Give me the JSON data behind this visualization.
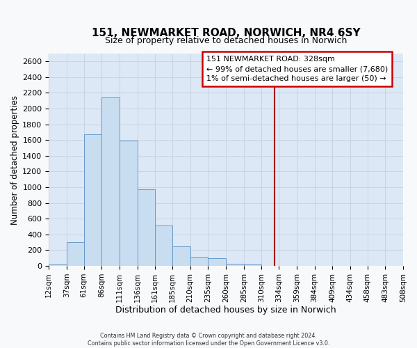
{
  "title": "151, NEWMARKET ROAD, NORWICH, NR4 6SY",
  "subtitle": "Size of property relative to detached houses in Norwich",
  "xlabel": "Distribution of detached houses by size in Norwich",
  "ylabel": "Number of detached properties",
  "bar_color": "#c8ddf0",
  "bar_edge_color": "#6699cc",
  "bg_color": "#dce8f5",
  "grid_color": "#c0ccd8",
  "fig_bg_color": "#f8f9fa",
  "bin_edges": [
    12,
    37,
    61,
    86,
    111,
    136,
    161,
    185,
    210,
    235,
    260,
    285,
    310,
    334,
    359,
    384,
    409,
    434,
    458,
    483,
    508
  ],
  "bin_heights": [
    20,
    300,
    1670,
    2140,
    1590,
    970,
    510,
    250,
    120,
    100,
    30,
    20,
    5,
    5,
    5,
    5,
    5,
    5,
    5,
    5
  ],
  "property_size": 328,
  "vline_color": "#aa0000",
  "annotation_title": "151 NEWMARKET ROAD: 328sqm",
  "annotation_line1": "← 99% of detached houses are smaller (7,680)",
  "annotation_line2": "1% of semi-detached houses are larger (50) →",
  "annotation_box_edge_color": "#cc0000",
  "ylim": [
    0,
    2700
  ],
  "yticks": [
    0,
    200,
    400,
    600,
    800,
    1000,
    1200,
    1400,
    1600,
    1800,
    2000,
    2200,
    2400,
    2600
  ],
  "footer_line1": "Contains HM Land Registry data © Crown copyright and database right 2024.",
  "footer_line2": "Contains public sector information licensed under the Open Government Licence v3.0."
}
